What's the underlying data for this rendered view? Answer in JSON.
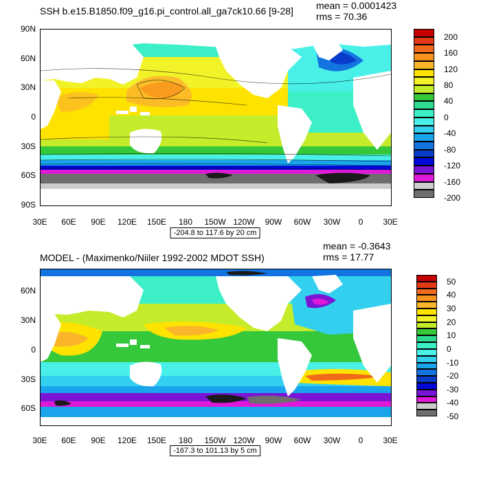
{
  "maps": [
    {
      "id": "top",
      "title": "SSH b.e15.B1850.f09_g16.pi_control.all_ga7ck10.66 [9-28]",
      "stats": {
        "mean": "mean = 0.0001423",
        "rms": "rms = 70.36"
      },
      "lat_labels": [
        "90N",
        "60N",
        "30N",
        "0",
        "30S",
        "60S",
        "90S"
      ],
      "lon_labels": [
        "30E",
        "60E",
        "90E",
        "120E",
        "150E",
        "180",
        "150W",
        "120W",
        "90W",
        "60W",
        "30W",
        "0",
        "30E"
      ],
      "contour_info": "-204.8 to 117.6 by 20 cm",
      "colorbar": {
        "labels": [
          "200",
          "160",
          "120",
          "80",
          "40",
          "0",
          "-40",
          "-80",
          "-120",
          "-160",
          "-200"
        ],
        "colors": [
          "#c40000",
          "#e23a17",
          "#f06a1a",
          "#f7941d",
          "#fbb52b",
          "#ffe300",
          "#f2f229",
          "#c5ec2a",
          "#35c83a",
          "#2fd98f",
          "#3cefc6",
          "#48f0e8",
          "#33cfef",
          "#1aa4ec",
          "#1374df",
          "#0a3ccc",
          "#0008d8",
          "#7b15d6",
          "#de1ad8",
          "#cccccc",
          "#6e6e6e"
        ]
      }
    },
    {
      "id": "bottom",
      "title": "MODEL - (Maximenko/Niiler 1992-2002 MDOT SSH)",
      "stats": {
        "mean": "mean = -0.3643",
        "rms": "rms = 17.77"
      },
      "lat_labels": [
        "60N",
        "30N",
        "0",
        "30S",
        "60S"
      ],
      "lon_labels": [
        "30E",
        "60E",
        "90E",
        "120E",
        "150E",
        "180",
        "150W",
        "120W",
        "90W",
        "60W",
        "30W",
        "0",
        "30E"
      ],
      "contour_info": "-167.3 to 101.13 by 5 cm",
      "colorbar": {
        "labels": [
          "50",
          "40",
          "30",
          "20",
          "10",
          "0",
          "-10",
          "-20",
          "-30",
          "-40",
          "-50"
        ],
        "colors": [
          "#c40000",
          "#e23a17",
          "#f06a1a",
          "#f7941d",
          "#fbb52b",
          "#ffe300",
          "#f2f229",
          "#c5ec2a",
          "#35c83a",
          "#2fd98f",
          "#3cefc6",
          "#48f0e8",
          "#33cfef",
          "#1aa4ec",
          "#1374df",
          "#0a3ccc",
          "#0008d8",
          "#7b15d6",
          "#de1ad8",
          "#cccccc",
          "#6e6e6e"
        ]
      }
    }
  ]
}
